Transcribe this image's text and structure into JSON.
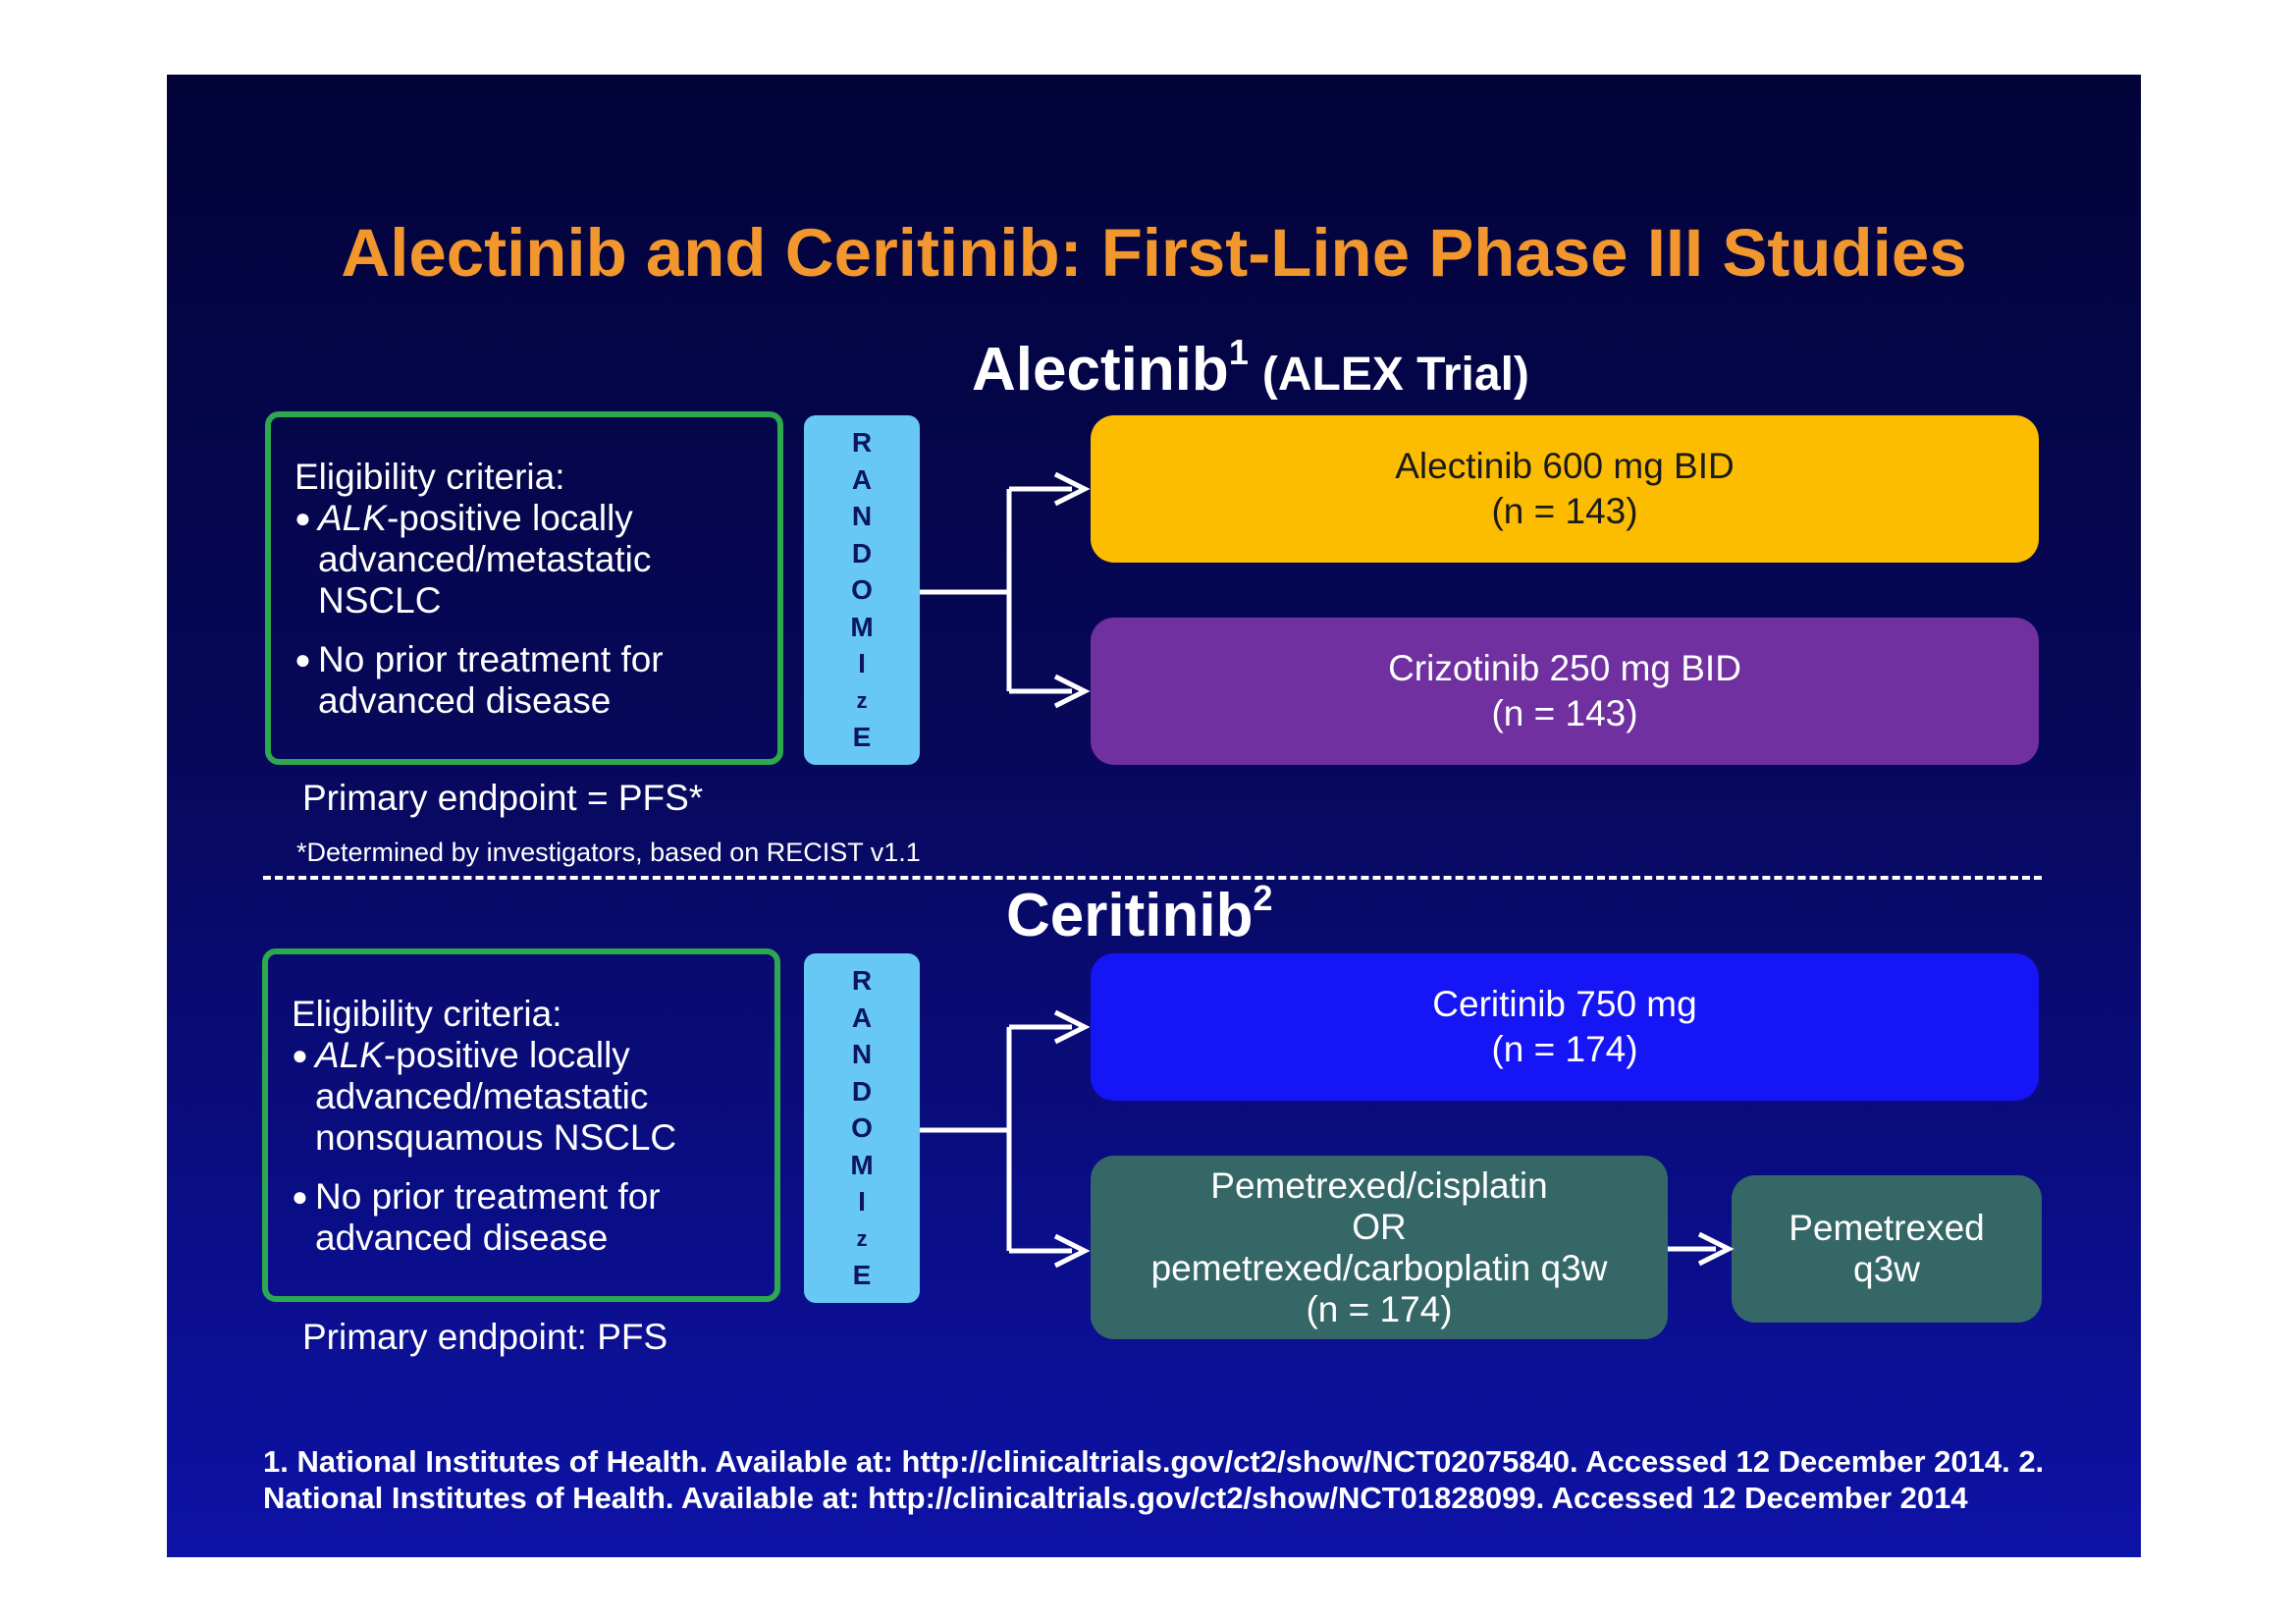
{
  "title": "Alectinib and Ceritinib: First-Line Phase III Studies",
  "colors": {
    "title": "#f2962e",
    "eligibility_border": "#2ea84f",
    "randomize_box": "#67c8f5",
    "alectinib_arm": "#fcbd00",
    "crizotinib_arm": "#7030a0",
    "ceritinib_arm": "#1515f5",
    "chemo_arm": "#366767"
  },
  "alex": {
    "heading": "Alectinib",
    "heading_sup": "1",
    "heading_paren": "(ALEX Trial)",
    "eligibility": {
      "label": "Eligibility criteria:",
      "bullet1_italic": "ALK",
      "bullet1_rest": "-positive locally advanced/metastatic NSCLC",
      "bullet2": "No prior treatment for advanced disease"
    },
    "randomize": [
      "R",
      "A",
      "N",
      "D",
      "O",
      "M",
      "I",
      "z",
      "E"
    ],
    "arms": [
      {
        "line1": "Alectinib 600 mg BID",
        "line2": "(n = 143)"
      },
      {
        "line1": "Crizotinib 250 mg BID",
        "line2": "(n = 143)"
      }
    ],
    "endpoint": "Primary endpoint  = PFS*",
    "footnote": "*Determined by investigators, based on RECIST v1.1"
  },
  "ceritinib": {
    "heading": "Ceritinib",
    "heading_sup": "2",
    "eligibility": {
      "label": "Eligibility criteria:",
      "bullet1_italic": "ALK",
      "bullet1_rest": "-positive locally advanced/metastatic nonsquamous NSCLC",
      "bullet2": "No prior treatment for advanced disease"
    },
    "randomize": [
      "R",
      "A",
      "N",
      "D",
      "O",
      "M",
      "I",
      "z",
      "E"
    ],
    "arms": [
      {
        "line1": "Ceritinib 750 mg",
        "line2": "(n = 174)"
      },
      {
        "line1": "Pemetrexed/cisplatin",
        "line2": "OR",
        "line3": "pemetrexed/carboplatin q3w",
        "line4": "(n = 174)"
      }
    ],
    "followup": {
      "line1": "Pemetrexed",
      "line2": "q3w"
    },
    "endpoint": "Primary endpoint: PFS"
  },
  "references": "1. National Institutes of Health. Available at: http://clinicaltrials.gov/ct2/show/NCT02075840.  Accessed 12 December 2014. 2. National Institutes of Health. Available at: http://clinicaltrials.gov/ct2/show/NCT01828099. Accessed 12 December 2014"
}
